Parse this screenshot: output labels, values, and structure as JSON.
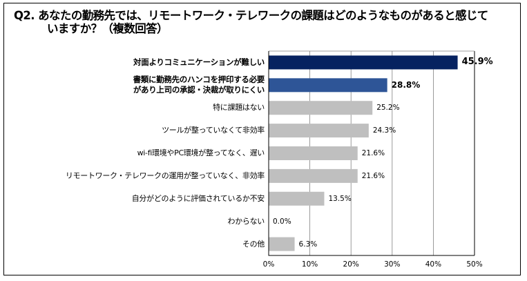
{
  "chart_data": {
    "type": "bar",
    "orientation": "horizontal",
    "title_line1": "Q2. あなたの勤務先では、リモートワーク・テレワークの課題はどのようなものがあると感じて",
    "title_line2": "いますか？（複数回答）",
    "categories": [
      "対面よりコミュニケーションが難しい",
      "書類に勤務先のハンコを押印する必要があり上司の承認・決裁が取りにくい",
      "特に課題はない",
      "ツールが整っていなくて非効率",
      "wi-fi環境やPC環境が整ってなく、遅い",
      "リモートワーク・テレワークの運用が整っていなく、非効率",
      "自分がどのように評価されているか不安",
      "わからない",
      "その他"
    ],
    "category_lines": [
      [
        "対面よりコミュニケーションが難しい"
      ],
      [
        "書類に勤務先のハンコを押印する必要",
        "があり上司の承認・決裁が取りにくい"
      ],
      [
        "特に課題はない"
      ],
      [
        "ツールが整っていなくて非効率"
      ],
      [
        "wi-fi環境やPC環境が整ってなく、遅い"
      ],
      [
        "リモートワーク・テレワークの運用が整っていなく、非効率"
      ],
      [
        "自分がどのように評価されているか不安"
      ],
      [
        "わからない"
      ],
      [
        "その他"
      ]
    ],
    "values": [
      45.9,
      28.8,
      25.2,
      24.3,
      21.6,
      21.6,
      13.5,
      0.0,
      6.3
    ],
    "value_labels": [
      "45.9%",
      "28.8%",
      "25.2%",
      "24.3%",
      "21.6%",
      "21.6%",
      "13.5%",
      "0.0%",
      "6.3%"
    ],
    "highlight": [
      true,
      true,
      false,
      false,
      false,
      false,
      false,
      false,
      false
    ],
    "colors": [
      "#062260",
      "#2e5597",
      "#bfbfbf",
      "#bfbfbf",
      "#bfbfbf",
      "#bfbfbf",
      "#bfbfbf",
      "#bfbfbf",
      "#bfbfbf"
    ],
    "xlim": [
      0,
      50
    ],
    "xticks": [
      0,
      10,
      20,
      30,
      40,
      50
    ],
    "xtick_labels": [
      "0%",
      "10%",
      "20%",
      "30%",
      "40%",
      "50%"
    ],
    "grid": true,
    "xlabel": "",
    "ylabel": ""
  }
}
